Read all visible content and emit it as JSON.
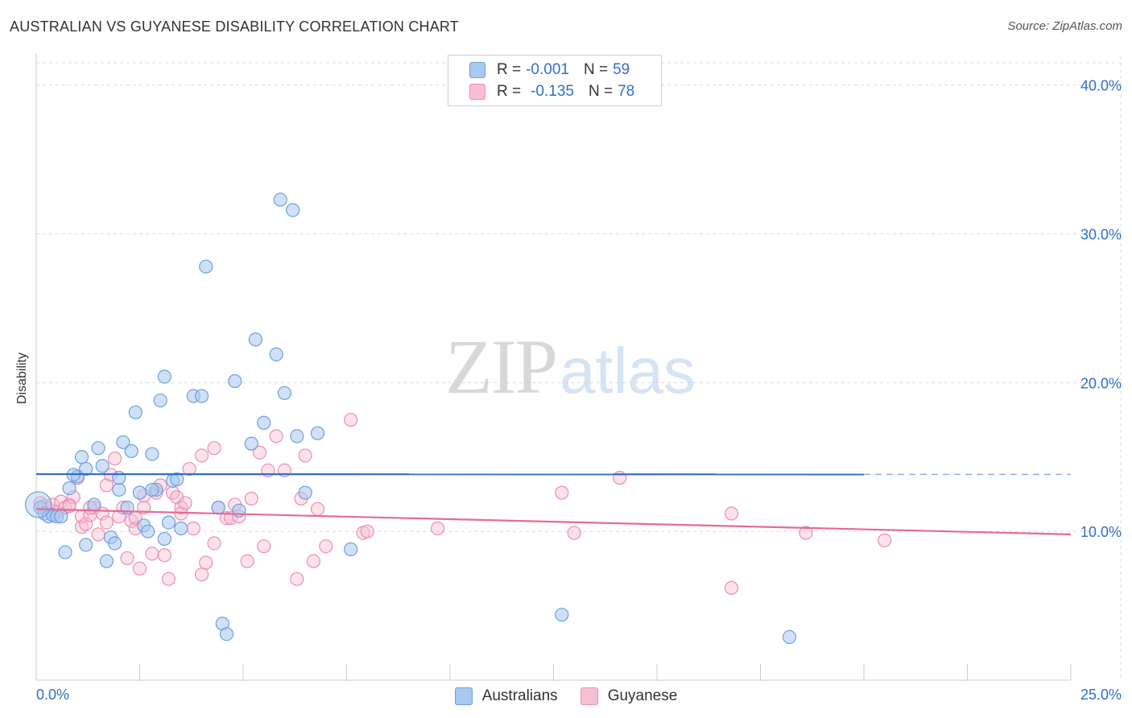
{
  "header": {
    "title": "AUSTRALIAN VS GUYANESE DISABILITY CORRELATION CHART",
    "source": "Source: ZipAtlas.com"
  },
  "watermark": {
    "zip": "ZIP",
    "atlas": "atlas"
  },
  "legend": {
    "rows": [
      {
        "r_label": "R =",
        "r_value": "-0.001",
        "n_label": "N =",
        "n_value": "59"
      },
      {
        "r_label": "R =",
        "r_value": "-0.135",
        "n_label": "N =",
        "n_value": "78"
      }
    ],
    "bottom": [
      "Australians",
      "Guyanese"
    ]
  },
  "colors": {
    "blue_fill": "#a9c9f0",
    "blue_stroke": "#6e9fde",
    "blue_line": "#2f6fc9",
    "pink_fill": "#f7bfd2",
    "pink_stroke": "#ec8fb0",
    "pink_line": "#e46b98",
    "value_text": "#2f6fc9",
    "grid": "#d9d9d9"
  },
  "chart_data": {
    "type": "scatter",
    "title": "AUSTRALIAN VS GUYANESE DISABILITY CORRELATION CHART",
    "xlabel": "",
    "ylabel": "Disability",
    "xlim": [
      0,
      25
    ],
    "ylim": [
      0,
      41.5
    ],
    "x_tick_labels": [
      "0.0%",
      "25.0%"
    ],
    "y_ticks": [
      10,
      20,
      30,
      40
    ],
    "y_tick_labels": [
      "10.0%",
      "20.0%",
      "30.0%",
      "40.0%"
    ],
    "grid": true,
    "series": [
      {
        "name": "Australians",
        "color": "blue",
        "trend": {
          "x0": 0,
          "y0": 13.85,
          "x1": 20,
          "y1": 13.83,
          "dash_to_x": 25
        },
        "points": [
          [
            0.1,
            11.6
          ],
          [
            0.2,
            11.2
          ],
          [
            0.3,
            11.0
          ],
          [
            0.4,
            11.1
          ],
          [
            0.5,
            11.0
          ],
          [
            0.6,
            11.0
          ],
          [
            0.7,
            8.6
          ],
          [
            0.8,
            12.9
          ],
          [
            1.0,
            13.7
          ],
          [
            1.1,
            15.0
          ],
          [
            1.2,
            14.2
          ],
          [
            1.2,
            9.1
          ],
          [
            1.4,
            11.8
          ],
          [
            1.5,
            15.6
          ],
          [
            1.6,
            14.4
          ],
          [
            1.7,
            8.0
          ],
          [
            1.8,
            9.6
          ],
          [
            1.9,
            9.2
          ],
          [
            2.0,
            12.8
          ],
          [
            2.0,
            13.6
          ],
          [
            2.1,
            16.0
          ],
          [
            2.2,
            11.6
          ],
          [
            2.3,
            15.4
          ],
          [
            2.4,
            18.0
          ],
          [
            2.5,
            12.6
          ],
          [
            2.6,
            10.4
          ],
          [
            2.7,
            10.0
          ],
          [
            2.8,
            15.2
          ],
          [
            2.9,
            12.8
          ],
          [
            3.0,
            18.8
          ],
          [
            3.1,
            20.4
          ],
          [
            3.2,
            10.6
          ],
          [
            3.3,
            13.4
          ],
          [
            3.4,
            13.5
          ],
          [
            3.5,
            10.2
          ],
          [
            3.1,
            9.5
          ],
          [
            3.8,
            19.1
          ],
          [
            4.0,
            19.1
          ],
          [
            4.1,
            27.8
          ],
          [
            4.4,
            11.6
          ],
          [
            4.5,
            3.8
          ],
          [
            4.6,
            3.1
          ],
          [
            4.8,
            20.1
          ],
          [
            4.9,
            11.4
          ],
          [
            5.2,
            15.9
          ],
          [
            5.3,
            22.9
          ],
          [
            5.5,
            17.3
          ],
          [
            5.8,
            21.9
          ],
          [
            5.9,
            32.3
          ],
          [
            6.0,
            19.3
          ],
          [
            6.2,
            31.6
          ],
          [
            6.3,
            16.4
          ],
          [
            6.5,
            12.6
          ],
          [
            6.8,
            16.6
          ],
          [
            7.6,
            8.8
          ],
          [
            12.7,
            4.4
          ],
          [
            18.2,
            2.9
          ],
          [
            0.9,
            13.8
          ],
          [
            2.8,
            12.8
          ]
        ]
      },
      {
        "name": "Guyanese",
        "color": "pink",
        "trend": {
          "x0": 0,
          "y0": 11.5,
          "x1": 25,
          "y1": 9.8
        },
        "points": [
          [
            0.1,
            11.9
          ],
          [
            0.2,
            11.7
          ],
          [
            0.3,
            11.5
          ],
          [
            0.4,
            11.8
          ],
          [
            0.5,
            11.3
          ],
          [
            0.6,
            12.0
          ],
          [
            0.7,
            11.6
          ],
          [
            0.8,
            11.8
          ],
          [
            0.9,
            12.3
          ],
          [
            1.0,
            13.6
          ],
          [
            1.1,
            10.3
          ],
          [
            1.1,
            11.0
          ],
          [
            1.2,
            10.5
          ],
          [
            1.3,
            11.1
          ],
          [
            1.4,
            11.6
          ],
          [
            1.5,
            9.8
          ],
          [
            1.6,
            11.2
          ],
          [
            1.7,
            10.6
          ],
          [
            1.7,
            13.1
          ],
          [
            1.8,
            13.8
          ],
          [
            1.9,
            14.9
          ],
          [
            2.0,
            11.0
          ],
          [
            2.1,
            11.6
          ],
          [
            2.2,
            8.2
          ],
          [
            2.3,
            10.7
          ],
          [
            2.4,
            10.2
          ],
          [
            2.5,
            7.5
          ],
          [
            2.6,
            11.6
          ],
          [
            2.6,
            12.4
          ],
          [
            2.8,
            8.5
          ],
          [
            2.9,
            12.6
          ],
          [
            3.0,
            13.1
          ],
          [
            3.1,
            8.4
          ],
          [
            3.2,
            6.8
          ],
          [
            3.3,
            12.6
          ],
          [
            3.4,
            12.3
          ],
          [
            3.5,
            11.6
          ],
          [
            3.5,
            11.2
          ],
          [
            3.7,
            14.2
          ],
          [
            3.8,
            10.2
          ],
          [
            4.0,
            15.1
          ],
          [
            4.1,
            7.9
          ],
          [
            4.0,
            7.1
          ],
          [
            4.3,
            9.2
          ],
          [
            4.3,
            15.6
          ],
          [
            4.4,
            11.6
          ],
          [
            4.6,
            10.9
          ],
          [
            4.7,
            10.9
          ],
          [
            4.9,
            11.0
          ],
          [
            5.1,
            8.0
          ],
          [
            5.2,
            12.2
          ],
          [
            5.4,
            15.3
          ],
          [
            5.5,
            9.0
          ],
          [
            5.6,
            14.1
          ],
          [
            5.8,
            16.4
          ],
          [
            6.0,
            14.1
          ],
          [
            6.3,
            6.8
          ],
          [
            6.4,
            12.2
          ],
          [
            6.5,
            15.1
          ],
          [
            6.7,
            8.0
          ],
          [
            6.8,
            11.5
          ],
          [
            7.0,
            9.0
          ],
          [
            7.6,
            17.5
          ],
          [
            7.9,
            9.9
          ],
          [
            8.0,
            10.0
          ],
          [
            9.7,
            10.2
          ],
          [
            12.7,
            12.6
          ],
          [
            13.0,
            9.9
          ],
          [
            14.1,
            13.6
          ],
          [
            16.8,
            6.2
          ],
          [
            16.8,
            11.2
          ],
          [
            18.6,
            9.9
          ],
          [
            20.5,
            9.4
          ],
          [
            4.8,
            11.8
          ],
          [
            3.6,
            11.9
          ],
          [
            2.4,
            10.9
          ],
          [
            1.3,
            11.6
          ],
          [
            0.8,
            11.7
          ]
        ]
      }
    ]
  }
}
